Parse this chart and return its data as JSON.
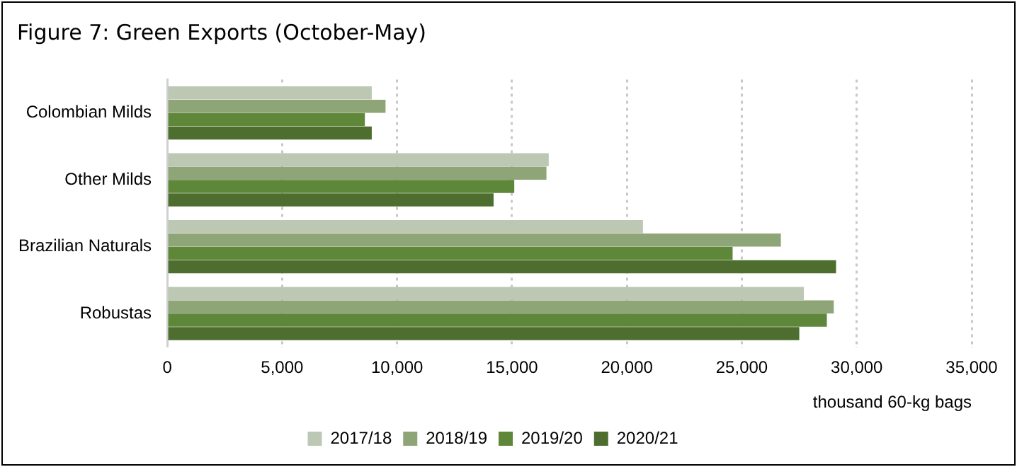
{
  "chart_data": {
    "type": "bar",
    "orientation": "horizontal",
    "title": "Figure 7: Green Exports (October-May)",
    "xlabel": "thousand 60-kg bags",
    "categories": [
      "Colombian Milds",
      "Other Milds",
      "Brazilian Naturals",
      "Robustas"
    ],
    "series": [
      {
        "name": "2017/18",
        "color": "#bcc8b4",
        "values": [
          8900,
          16600,
          20700,
          27700
        ]
      },
      {
        "name": "2018/19",
        "color": "#8ea677",
        "values": [
          9500,
          16500,
          26700,
          29000
        ]
      },
      {
        "name": "2019/20",
        "color": "#5f873a",
        "values": [
          8600,
          15100,
          24600,
          28700
        ]
      },
      {
        "name": "2020/21",
        "color": "#4d6e2f",
        "values": [
          8900,
          14200,
          29100,
          27500
        ]
      }
    ],
    "xlim": [
      0,
      35000
    ],
    "xticks": [
      {
        "value": 0,
        "label": "0"
      },
      {
        "value": 5000,
        "label": "5,000"
      },
      {
        "value": 10000,
        "label": "10,000"
      },
      {
        "value": 15000,
        "label": "15,000"
      },
      {
        "value": 20000,
        "label": "20,000"
      },
      {
        "value": 25000,
        "label": "25,000"
      },
      {
        "value": 30000,
        "label": "30,000"
      },
      {
        "value": 35000,
        "label": "35,000"
      }
    ],
    "grid": "x",
    "legend": "bottom"
  }
}
